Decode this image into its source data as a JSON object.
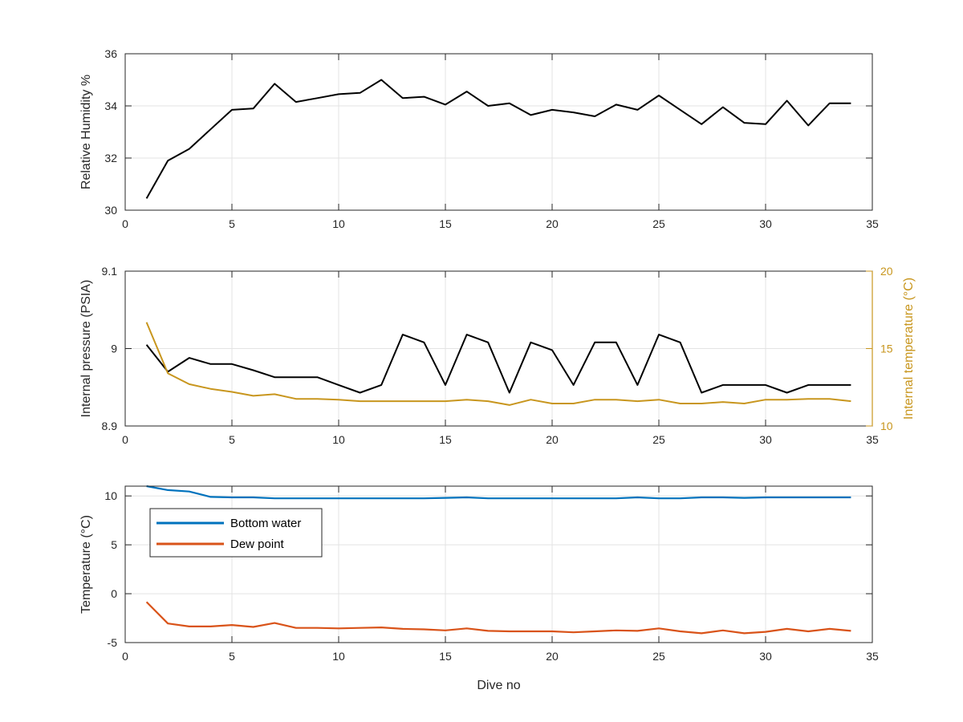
{
  "chart_data": [
    {
      "type": "line",
      "ylabel": "Relative Humidity %",
      "xlim": [
        0,
        35
      ],
      "ylim": [
        30,
        36
      ],
      "xticks": [
        "0",
        "5",
        "10",
        "15",
        "20",
        "25",
        "30",
        "35"
      ],
      "yticks": [
        "30",
        "32",
        "34",
        "36"
      ],
      "grid": true,
      "series": [
        {
          "color": "#000000",
          "x": [
            1,
            2,
            3,
            4,
            5,
            6,
            7,
            8,
            9,
            10,
            11,
            12,
            13,
            14,
            15,
            16,
            17,
            18,
            19,
            20,
            21,
            22,
            23,
            24,
            25,
            26,
            27,
            28,
            29,
            30,
            31,
            32,
            33,
            34
          ],
          "values": [
            30.45,
            31.9,
            32.35,
            33.1,
            33.85,
            33.9,
            34.85,
            34.15,
            34.3,
            34.45,
            34.5,
            35.0,
            34.3,
            34.35,
            34.05,
            34.55,
            34.0,
            34.1,
            33.65,
            33.85,
            33.75,
            33.6,
            34.05,
            33.85,
            34.4,
            33.85,
            33.3,
            33.95,
            33.35,
            33.3,
            34.2,
            33.25,
            34.1,
            34.1
          ]
        }
      ]
    },
    {
      "type": "line",
      "ylabel": "Internal pressure (PSIA)",
      "y2label": "Internal temperature (°C)",
      "xlim": [
        0,
        35
      ],
      "ylim": [
        8.9,
        9.1
      ],
      "y2lim": [
        10,
        20
      ],
      "xticks": [
        "0",
        "5",
        "10",
        "15",
        "20",
        "25",
        "30",
        "35"
      ],
      "yticks": [
        "8.9",
        "9",
        "9.1"
      ],
      "y2ticks": [
        "10",
        "15",
        "20"
      ],
      "grid": true,
      "series": [
        {
          "axis": "left",
          "color": "#000000",
          "x": [
            1,
            2,
            3,
            4,
            5,
            6,
            7,
            8,
            9,
            10,
            11,
            12,
            13,
            14,
            15,
            16,
            17,
            18,
            19,
            20,
            21,
            22,
            23,
            24,
            25,
            26,
            27,
            28,
            29,
            30,
            31,
            32,
            33,
            34
          ],
          "values": [
            9.005,
            8.97,
            8.988,
            8.98,
            8.98,
            8.972,
            8.963,
            8.963,
            8.963,
            8.953,
            8.943,
            8.953,
            9.018,
            9.008,
            8.953,
            9.018,
            9.008,
            8.943,
            9.008,
            8.998,
            8.953,
            9.008,
            9.008,
            8.953,
            9.018,
            9.008,
            8.943,
            8.953,
            8.953,
            8.953,
            8.943,
            8.953,
            8.953,
            8.953
          ]
        },
        {
          "axis": "right",
          "color": "#C8961E",
          "x": [
            1,
            2,
            3,
            4,
            5,
            6,
            7,
            8,
            9,
            10,
            11,
            12,
            13,
            14,
            15,
            16,
            17,
            18,
            19,
            20,
            21,
            22,
            23,
            24,
            25,
            26,
            27,
            28,
            29,
            30,
            31,
            32,
            33,
            34
          ],
          "values": [
            16.7,
            13.4,
            12.7,
            12.4,
            12.2,
            11.95,
            12.05,
            11.75,
            11.75,
            11.7,
            11.6,
            11.6,
            11.6,
            11.6,
            11.6,
            11.7,
            11.6,
            11.35,
            11.7,
            11.45,
            11.45,
            11.7,
            11.7,
            11.6,
            11.7,
            11.45,
            11.45,
            11.55,
            11.45,
            11.7,
            11.7,
            11.75,
            11.75,
            11.6
          ]
        }
      ]
    },
    {
      "type": "line",
      "ylabel": "Temperature (°C)",
      "xlabel": "Dive no",
      "xlim": [
        0,
        35
      ],
      "ylim": [
        -5,
        11
      ],
      "xticks": [
        "0",
        "5",
        "10",
        "15",
        "20",
        "25",
        "30",
        "35"
      ],
      "yticks": [
        "-5",
        "0",
        "5",
        "10"
      ],
      "grid": true,
      "legend": "top-left",
      "series": [
        {
          "name": "Bottom water",
          "color": "#0072BD",
          "x": [
            1,
            2,
            3,
            4,
            5,
            6,
            7,
            8,
            9,
            10,
            11,
            12,
            13,
            14,
            15,
            16,
            17,
            18,
            19,
            20,
            21,
            22,
            23,
            24,
            25,
            26,
            27,
            28,
            29,
            30,
            31,
            32,
            33,
            34
          ],
          "values": [
            11.2,
            10.6,
            10.45,
            9.9,
            9.85,
            9.85,
            9.75,
            9.75,
            9.75,
            9.75,
            9.75,
            9.75,
            9.75,
            9.75,
            9.8,
            9.85,
            9.75,
            9.75,
            9.75,
            9.75,
            9.75,
            9.75,
            9.75,
            9.85,
            9.75,
            9.75,
            9.85,
            9.85,
            9.8,
            9.85,
            9.85,
            9.85,
            9.85,
            9.85
          ]
        },
        {
          "name": "Dew point",
          "color": "#D95319",
          "x": [
            1,
            2,
            3,
            4,
            5,
            6,
            7,
            8,
            9,
            10,
            11,
            12,
            13,
            14,
            15,
            16,
            17,
            18,
            19,
            20,
            21,
            22,
            23,
            24,
            25,
            26,
            27,
            28,
            29,
            30,
            31,
            32,
            33,
            34
          ],
          "values": [
            -0.85,
            -3.05,
            -3.35,
            -3.35,
            -3.2,
            -3.4,
            -3.0,
            -3.5,
            -3.5,
            -3.55,
            -3.5,
            -3.45,
            -3.6,
            -3.65,
            -3.75,
            -3.55,
            -3.8,
            -3.85,
            -3.85,
            -3.85,
            -3.95,
            -3.85,
            -3.75,
            -3.8,
            -3.55,
            -3.85,
            -4.05,
            -3.75,
            -4.05,
            -3.9,
            -3.6,
            -3.85,
            -3.6,
            -3.8
          ]
        }
      ]
    }
  ]
}
